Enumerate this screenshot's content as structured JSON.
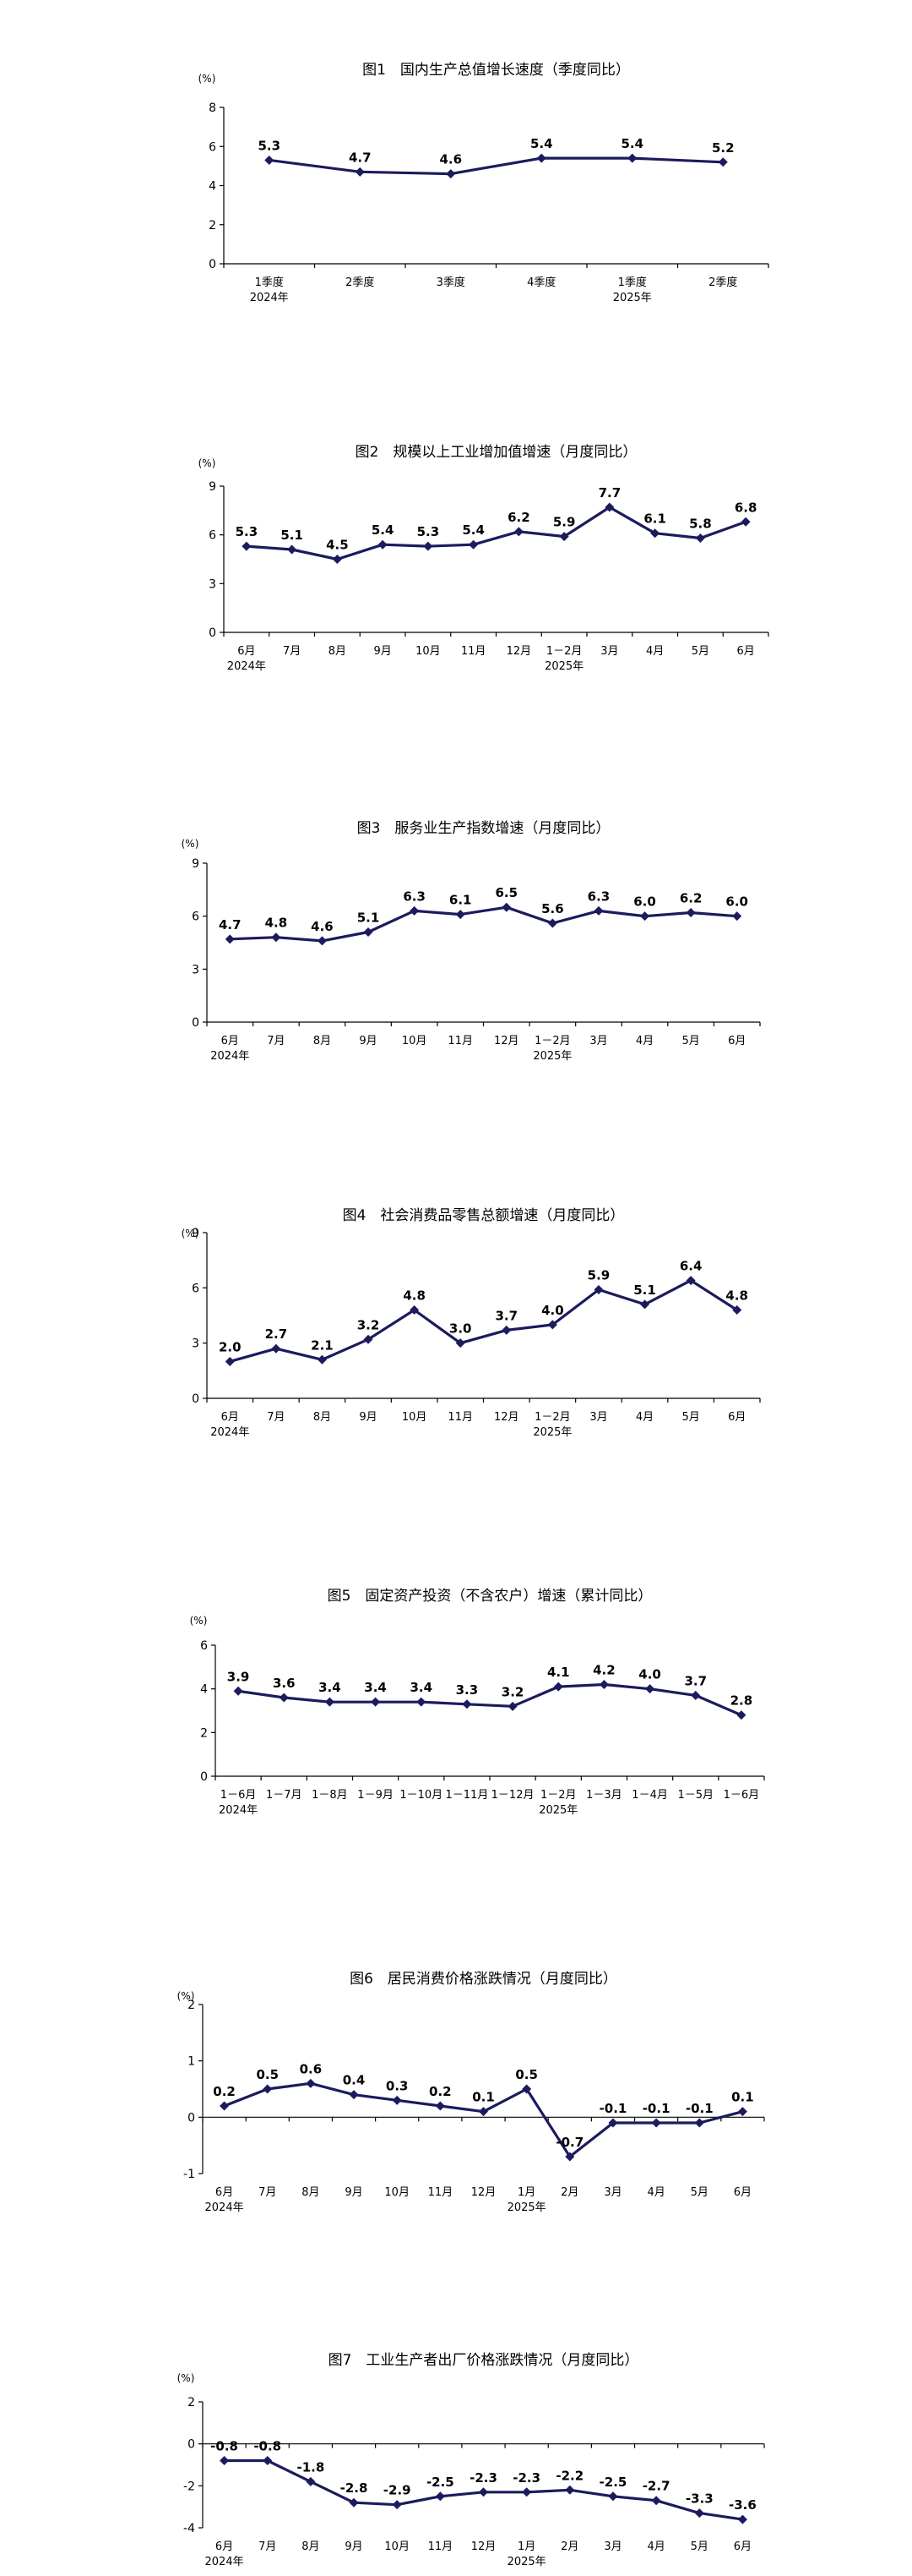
{
  "colors": {
    "line": "#1b1b5e",
    "axis": "#000000",
    "text": "#000000"
  },
  "chart_data": [
    {
      "type": "line",
      "title": "图1　国内生产总值增长速度（季度同比）",
      "unit": "(%)",
      "ylim": [
        0,
        8
      ],
      "yticks": [
        "0",
        "2",
        "4",
        "6",
        "8"
      ],
      "categories": [
        "1季度",
        "2季度",
        "3季度",
        "4季度",
        "1季度",
        "2季度"
      ],
      "year_labels": [
        "2024年",
        "",
        "",
        "",
        "2025年",
        ""
      ],
      "values": [
        5.3,
        4.7,
        4.6,
        5.4,
        5.4,
        5.2
      ],
      "value_labels": [
        "5.3",
        "4.7",
        "4.6",
        "5.4",
        "5.4",
        "5.2"
      ]
    },
    {
      "type": "line",
      "title": "图2　规模以上工业增加值增速（月度同比）",
      "unit": "(%)",
      "ylim": [
        0,
        9
      ],
      "yticks": [
        "0",
        "3",
        "6",
        "9"
      ],
      "categories": [
        "6月",
        "7月",
        "8月",
        "9月",
        "10月",
        "11月",
        "12月",
        "1－2月",
        "3月",
        "4月",
        "5月",
        "6月"
      ],
      "year_labels": [
        "2024年",
        "",
        "",
        "",
        "",
        "",
        "",
        "2025年",
        "",
        "",
        "",
        ""
      ],
      "values": [
        5.3,
        5.1,
        4.5,
        5.4,
        5.3,
        5.4,
        6.2,
        5.9,
        7.7,
        6.1,
        5.8,
        6.8
      ],
      "value_labels": [
        "5.3",
        "5.1",
        "4.5",
        "5.4",
        "5.3",
        "5.4",
        "6.2",
        "5.9",
        "7.7",
        "6.1",
        "5.8",
        "6.8"
      ]
    },
    {
      "type": "line",
      "title": "图3　服务业生产指数增速（月度同比）",
      "unit": "(%)",
      "ylim": [
        0,
        9
      ],
      "yticks": [
        "0",
        "3",
        "6",
        "9"
      ],
      "categories": [
        "6月",
        "7月",
        "8月",
        "9月",
        "10月",
        "11月",
        "12月",
        "1－2月",
        "3月",
        "4月",
        "5月",
        "6月"
      ],
      "year_labels": [
        "2024年",
        "",
        "",
        "",
        "",
        "",
        "",
        "2025年",
        "",
        "",
        "",
        ""
      ],
      "values": [
        4.7,
        4.8,
        4.6,
        5.1,
        6.3,
        6.1,
        6.5,
        5.6,
        6.3,
        6.0,
        6.2,
        6.0
      ],
      "value_labels": [
        "4.7",
        "4.8",
        "4.6",
        "5.1",
        "6.3",
        "6.1",
        "6.5",
        "5.6",
        "6.3",
        "6.0",
        "6.2",
        "6.0"
      ]
    },
    {
      "type": "line",
      "title": "图4　社会消费品零售总额增速（月度同比）",
      "unit": "(%)",
      "ylim": [
        0,
        9
      ],
      "yticks": [
        "0",
        "3",
        "6",
        "9"
      ],
      "categories": [
        "6月",
        "7月",
        "8月",
        "9月",
        "10月",
        "11月",
        "12月",
        "1－2月",
        "3月",
        "4月",
        "5月",
        "6月"
      ],
      "year_labels": [
        "2024年",
        "",
        "",
        "",
        "",
        "",
        "",
        "2025年",
        "",
        "",
        "",
        ""
      ],
      "values": [
        2.0,
        2.7,
        2.1,
        3.2,
        4.8,
        3.0,
        3.7,
        4.0,
        5.9,
        5.1,
        6.4,
        4.8
      ],
      "value_labels": [
        "2.0",
        "2.7",
        "2.1",
        "3.2",
        "4.8",
        "3.0",
        "3.7",
        "4.0",
        "5.9",
        "5.1",
        "6.4",
        "4.8"
      ]
    },
    {
      "type": "line",
      "title": "图5　固定资产投资（不含农户）增速（累计同比）",
      "unit": "(%)",
      "ylim": [
        0,
        6
      ],
      "yticks": [
        "0",
        "2",
        "4",
        "6"
      ],
      "categories": [
        "1－6月",
        "1－7月",
        "1－8月",
        "1－9月",
        "1－10月",
        "1－11月",
        "1－12月",
        "1－2月",
        "1－3月",
        "1－4月",
        "1－5月",
        "1－6月"
      ],
      "year_labels": [
        "2024年",
        "",
        "",
        "",
        "",
        "",
        "",
        "2025年",
        "",
        "",
        "",
        ""
      ],
      "values": [
        3.9,
        3.6,
        3.4,
        3.4,
        3.4,
        3.3,
        3.2,
        4.1,
        4.2,
        4.0,
        3.7,
        2.8
      ],
      "value_labels": [
        "3.9",
        "3.6",
        "3.4",
        "3.4",
        "3.4",
        "3.3",
        "3.2",
        "4.1",
        "4.2",
        "4.0",
        "3.7",
        "2.8"
      ]
    },
    {
      "type": "line",
      "title": "图6　居民消费价格涨跌情况（月度同比）",
      "unit": "(%)",
      "ylim": [
        -1,
        2
      ],
      "yticks": [
        "-1",
        "0",
        "1",
        "2"
      ],
      "categories": [
        "6月",
        "7月",
        "8月",
        "9月",
        "10月",
        "11月",
        "12月",
        "1月",
        "2月",
        "3月",
        "4月",
        "5月",
        "6月"
      ],
      "year_labels": [
        "2024年",
        "",
        "",
        "",
        "",
        "",
        "",
        "2025年",
        "",
        "",
        "",
        "",
        ""
      ],
      "values": [
        0.2,
        0.5,
        0.6,
        0.4,
        0.3,
        0.2,
        0.1,
        0.5,
        -0.7,
        -0.1,
        -0.1,
        -0.1,
        0.1
      ],
      "value_labels": [
        "0.2",
        "0.5",
        "0.6",
        "0.4",
        "0.3",
        "0.2",
        "0.1",
        "0.5",
        "-0.7",
        "-0.1",
        "-0.1",
        "-0.1",
        "0.1"
      ]
    },
    {
      "type": "line",
      "title": "图7　工业生产者出厂价格涨跌情况（月度同比）",
      "unit": "(%)",
      "ylim": [
        -4,
        2
      ],
      "yticks": [
        "-4",
        "-2",
        "0",
        "2"
      ],
      "categories": [
        "6月",
        "7月",
        "8月",
        "9月",
        "10月",
        "11月",
        "12月",
        "1月",
        "2月",
        "3月",
        "4月",
        "5月",
        "6月"
      ],
      "year_labels": [
        "2024年",
        "",
        "",
        "",
        "",
        "",
        "",
        "2025年",
        "",
        "",
        "",
        "",
        ""
      ],
      "values": [
        -0.8,
        -0.8,
        -1.8,
        -2.8,
        -2.9,
        -2.5,
        -2.3,
        -2.3,
        -2.2,
        -2.5,
        -2.7,
        -3.3,
        -3.6
      ],
      "value_labels": [
        "-0.8",
        "-0.8",
        "-1.8",
        "-2.8",
        "-2.9",
        "-2.5",
        "-2.3",
        "-2.3",
        "-2.2",
        "-2.5",
        "-2.7",
        "-3.3",
        "-3.6"
      ]
    }
  ]
}
